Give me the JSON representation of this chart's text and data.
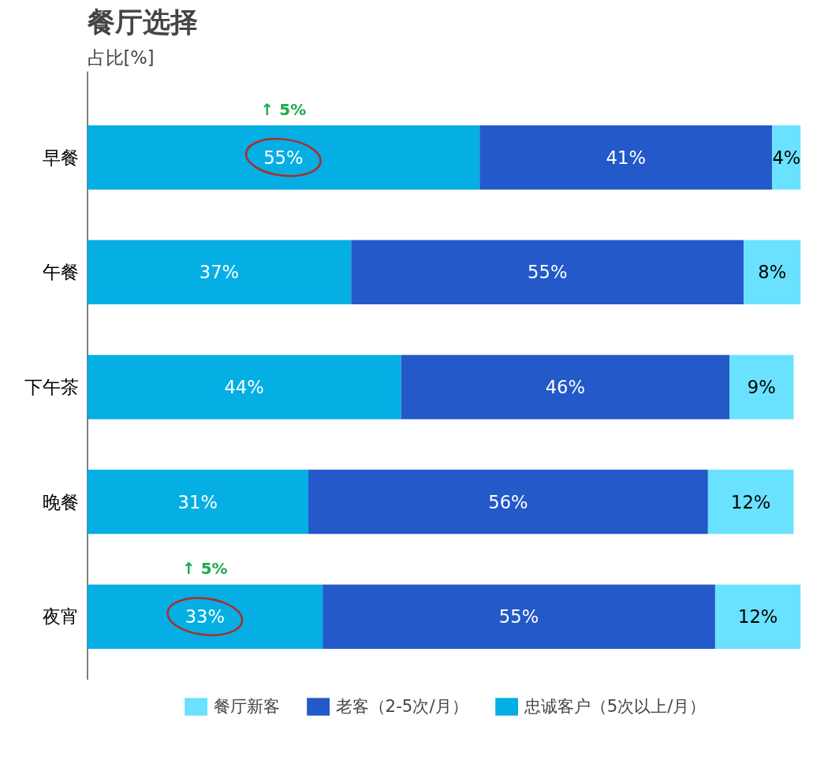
{
  "chart_data": {
    "type": "bar",
    "orientation": "horizontal",
    "stacked": true,
    "title": "餐厅选择",
    "ylabel": "占比[%]",
    "categories": [
      "早餐",
      "午餐",
      "下午茶",
      "晚餐",
      "夜宵"
    ],
    "series": [
      {
        "name": "忠诚客户（5次以上/月）",
        "color": "#05aee3",
        "values": [
          55,
          37,
          44,
          31,
          33
        ],
        "value_labels": [
          "55%",
          "37%",
          "44%",
          "31%",
          "33%"
        ]
      },
      {
        "name": "老客（2-5次/月）",
        "color": "#2359c8",
        "values": [
          41,
          55,
          46,
          56,
          55
        ],
        "value_labels": [
          "41%",
          "55%",
          "46%",
          "56%",
          "55%"
        ]
      },
      {
        "name": "餐厅新客",
        "color": "#6ae1fe",
        "values": [
          4,
          8,
          9,
          12,
          12
        ],
        "value_labels": [
          "4%",
          "8%",
          "9%",
          "12%",
          "12%"
        ]
      }
    ],
    "legend": "bottom",
    "grid": false,
    "tick_labels": "y",
    "annotations": [
      "↑ 5%",
      "↑ 5%"
    ]
  }
}
